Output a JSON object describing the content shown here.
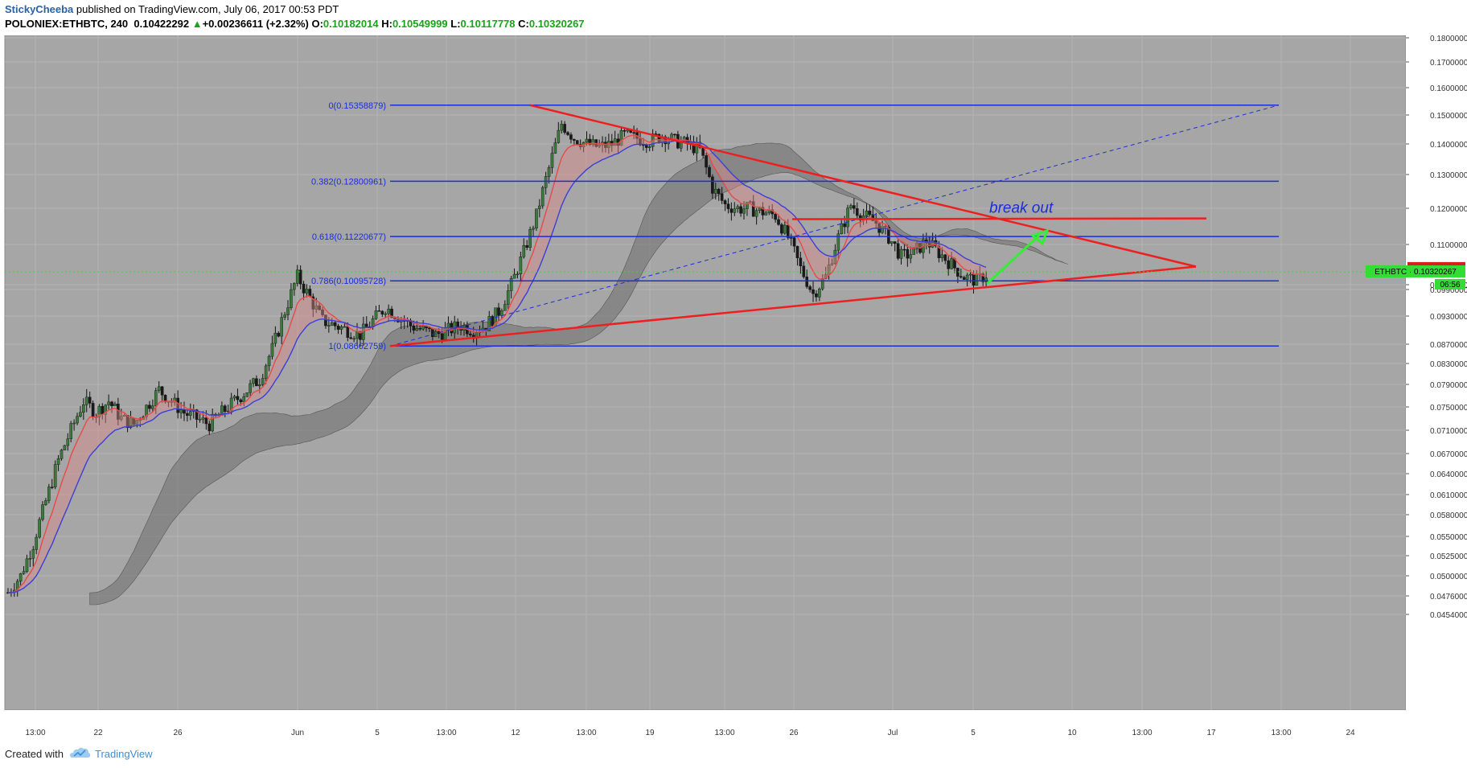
{
  "header": {
    "author": "StickyCheeba",
    "published": " published on TradingView.com, July 06, 2017 00:53 PDT",
    "symbol_line": "POLONIEX:ETHBTC, 240",
    "last": "0.10422292",
    "change": "+0.00236611 (+2.32%)",
    "o_label": "O:",
    "o_value": "0.10182014",
    "h_label": "H:",
    "h_value": "0.10549999",
    "l_label": "L:",
    "l_value": "0.10117778",
    "c_label": "C:",
    "c_value": "0.10320267"
  },
  "footer": {
    "created_with": "Created with",
    "brand": "TradingView"
  },
  "colors": {
    "chart_bg": "#a6a6a6",
    "fib_blue": "#1a2fd6",
    "trend_red": "#ee1f1f",
    "arrow_green": "#33ee33",
    "ma_red": "#e84a4a",
    "ma_blue": "#3a3fd8",
    "price_tag_red": "#d81f1f",
    "price_tag_green": "#33dd33"
  },
  "chart_data": {
    "type": "candlestick",
    "symbol": "POLONIEX:ETHBTC",
    "interval": "240",
    "yaxis_ticks": [
      "0.18000000",
      "0.17000000",
      "0.16000000",
      "0.15000000",
      "0.14000000",
      "0.13000000",
      "0.12000000",
      "0.11000000",
      "0.10000000",
      "0.09900000",
      "0.09300000",
      "0.08700000",
      "0.08300000",
      "0.07900000",
      "0.07500000",
      "0.07100000",
      "0.06700000",
      "0.06400000",
      "0.06100000",
      "0.05800000",
      "0.05500000",
      "0.05250000",
      "0.05000000",
      "0.04760000",
      "0.04540000"
    ],
    "xaxis_ticks": [
      "13:00",
      "22",
      "26",
      "Jun",
      "5",
      "13:00",
      "12",
      "13:00",
      "19",
      "13:00",
      "26",
      "Jul",
      "5",
      "10",
      "13:00",
      "17",
      "13:00",
      "24"
    ],
    "fib_levels": [
      {
        "label": "0(0.15358879)",
        "value": 0.15358879
      },
      {
        "label": "0.382(0.12800961)",
        "value": 0.12800961
      },
      {
        "label": "0.618(0.11220677)",
        "value": 0.11220677
      },
      {
        "label": "0.786(0.10095728)",
        "value": 0.10095728
      },
      {
        "label": "1(0.08662759)",
        "value": 0.08662759
      }
    ],
    "annotation": "break out",
    "price_tags": [
      {
        "label": "0.10422292",
        "value": 0.10422292
      },
      {
        "label": "ETHBTC · 0.10320267",
        "value": 0.10320267
      },
      {
        "label": "06:56"
      }
    ],
    "close_series_approx": [
      0.048,
      0.05,
      0.054,
      0.06,
      0.066,
      0.071,
      0.076,
      0.074,
      0.076,
      0.073,
      0.072,
      0.075,
      0.078,
      0.076,
      0.074,
      0.073,
      0.072,
      0.074,
      0.076,
      0.078,
      0.08,
      0.086,
      0.094,
      0.102,
      0.097,
      0.092,
      0.091,
      0.09,
      0.089,
      0.092,
      0.095,
      0.093,
      0.091,
      0.09,
      0.089,
      0.09,
      0.091,
      0.09,
      0.091,
      0.094,
      0.1,
      0.108,
      0.118,
      0.132,
      0.147,
      0.142,
      0.14,
      0.139,
      0.14,
      0.143,
      0.142,
      0.141,
      0.143,
      0.141,
      0.14,
      0.138,
      0.126,
      0.121,
      0.12,
      0.12,
      0.119,
      0.118,
      0.112,
      0.104,
      0.098,
      0.102,
      0.112,
      0.121,
      0.118,
      0.116,
      0.112,
      0.107,
      0.108,
      0.111,
      0.108,
      0.105,
      0.102,
      0.101,
      0.103
    ]
  }
}
